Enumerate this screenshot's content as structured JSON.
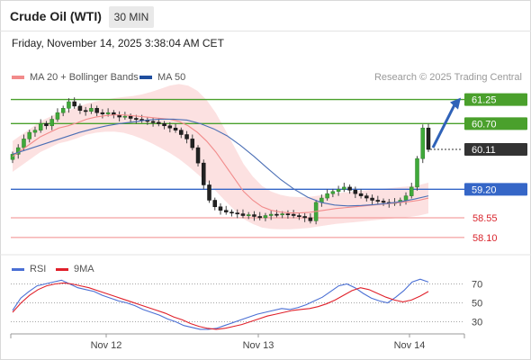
{
  "header": {
    "title": "Crude Oil (WTI)",
    "timeframe": "30 MIN",
    "datetime": "Friday, November 14, 2025 3:38:04 AM CET"
  },
  "legend": {
    "items": [
      {
        "label": "MA 20 + Bollinger Bands",
        "color": "#f28b8b"
      },
      {
        "label": "MA 50",
        "color": "#1f4e9e"
      }
    ],
    "credit": "Research © 2025 Trading Central"
  },
  "chart_data": [
    {
      "type": "candlestick",
      "title": "Crude Oil (WTI)",
      "ylim": [
        57.85,
        61.55
      ],
      "levels": [
        {
          "value": 61.25,
          "label": "61.25",
          "style": "green-badge"
        },
        {
          "value": 60.7,
          "label": "60.70",
          "style": "green-badge"
        },
        {
          "value": 60.11,
          "label": "60.11",
          "style": "current-price"
        },
        {
          "value": 59.2,
          "label": "59.20",
          "style": "blue-badge"
        },
        {
          "value": 58.55,
          "label": "58.55",
          "style": "red-text"
        },
        {
          "value": 58.1,
          "label": "58.10",
          "style": "red-text"
        }
      ],
      "projection": {
        "from": 60.11,
        "to": 61.25,
        "direction": "up"
      },
      "x_ticks": [
        "Nov 12",
        "Nov 13",
        "Nov 14"
      ],
      "series": [
        {
          "name": "Price",
          "closes": [
            60.0,
            60.15,
            60.35,
            60.5,
            60.55,
            60.7,
            60.65,
            60.8,
            60.95,
            61.05,
            61.2,
            61.1,
            61.0,
            60.98,
            61.05,
            60.95,
            60.92,
            60.95,
            60.9,
            60.85,
            60.87,
            60.82,
            60.8,
            60.78,
            60.75,
            60.73,
            60.7,
            60.65,
            60.6,
            60.55,
            60.45,
            60.35,
            60.15,
            59.8,
            59.3,
            58.95,
            58.8,
            58.72,
            58.68,
            58.66,
            58.64,
            58.6,
            58.62,
            58.58,
            58.55,
            58.6,
            58.63,
            58.62,
            58.64,
            58.63,
            58.6,
            58.58,
            58.55,
            58.48,
            58.9,
            59.0,
            59.1,
            59.15,
            59.2,
            59.25,
            59.18,
            59.1,
            59.05,
            59.0,
            58.95,
            58.93,
            58.9,
            58.88,
            58.9,
            58.95,
            59.05,
            59.25,
            59.9,
            60.6,
            60.11
          ]
        },
        {
          "name": "MA 20",
          "values": [
            59.95,
            60.1,
            60.25,
            60.4,
            60.5,
            60.6,
            60.65,
            60.72,
            60.8,
            60.85,
            60.88,
            60.9,
            60.9,
            60.88,
            60.86,
            60.84,
            60.82,
            60.8,
            60.75,
            60.65,
            60.5,
            60.3,
            60.05,
            59.75,
            59.45,
            59.15,
            58.95,
            58.8,
            58.72,
            58.68,
            58.66,
            58.66,
            58.67,
            58.7,
            58.73,
            58.76,
            58.78,
            58.8,
            58.82,
            58.84,
            58.86,
            58.88,
            58.9,
            58.92,
            58.95,
            59.0
          ]
        },
        {
          "name": "MA 50",
          "values": [
            60.0,
            60.1,
            60.2,
            60.3,
            60.4,
            60.5,
            60.58,
            60.65,
            60.7,
            60.74,
            60.78,
            60.8,
            60.8,
            60.78,
            60.7,
            60.58,
            60.42,
            60.2,
            59.95,
            59.68,
            59.42,
            59.2,
            59.02,
            58.9,
            58.84,
            58.82,
            58.83,
            58.85,
            58.88,
            58.92,
            58.98,
            59.05
          ]
        }
      ]
    },
    {
      "type": "line",
      "title": "RSI",
      "ylim": [
        20,
        80
      ],
      "ticks": [
        70,
        50,
        30
      ],
      "x_ticks": [
        "Nov 12",
        "Nov 13",
        "Nov 14"
      ],
      "series": [
        {
          "name": "RSI",
          "color": "#4a6fd4",
          "values": [
            42,
            55,
            62,
            68,
            70,
            72,
            74,
            70,
            66,
            64,
            62,
            58,
            55,
            52,
            50,
            47,
            43,
            40,
            37,
            33,
            30,
            26,
            24,
            22,
            22,
            23,
            26,
            29,
            32,
            35,
            38,
            40,
            42,
            44,
            43,
            45,
            48,
            52,
            56,
            62,
            68,
            70,
            66,
            60,
            55,
            52,
            50,
            56,
            63,
            72,
            75,
            72
          ]
        },
        {
          "name": "9MA",
          "color": "#e0202a",
          "values": [
            40,
            50,
            58,
            64,
            68,
            70,
            71,
            70,
            68,
            66,
            63,
            60,
            57,
            54,
            51,
            48,
            45,
            42,
            39,
            35,
            32,
            28,
            25,
            23,
            22,
            23,
            25,
            27,
            30,
            33,
            36,
            38,
            40,
            42,
            43,
            44,
            46,
            49,
            53,
            58,
            63,
            66,
            64,
            60,
            56,
            53,
            51,
            53,
            57,
            62
          ]
        }
      ]
    }
  ],
  "rsi_legend": {
    "items": [
      {
        "label": "RSI",
        "color": "#4a6fd4"
      },
      {
        "label": "9MA",
        "color": "#e0202a"
      }
    ]
  }
}
